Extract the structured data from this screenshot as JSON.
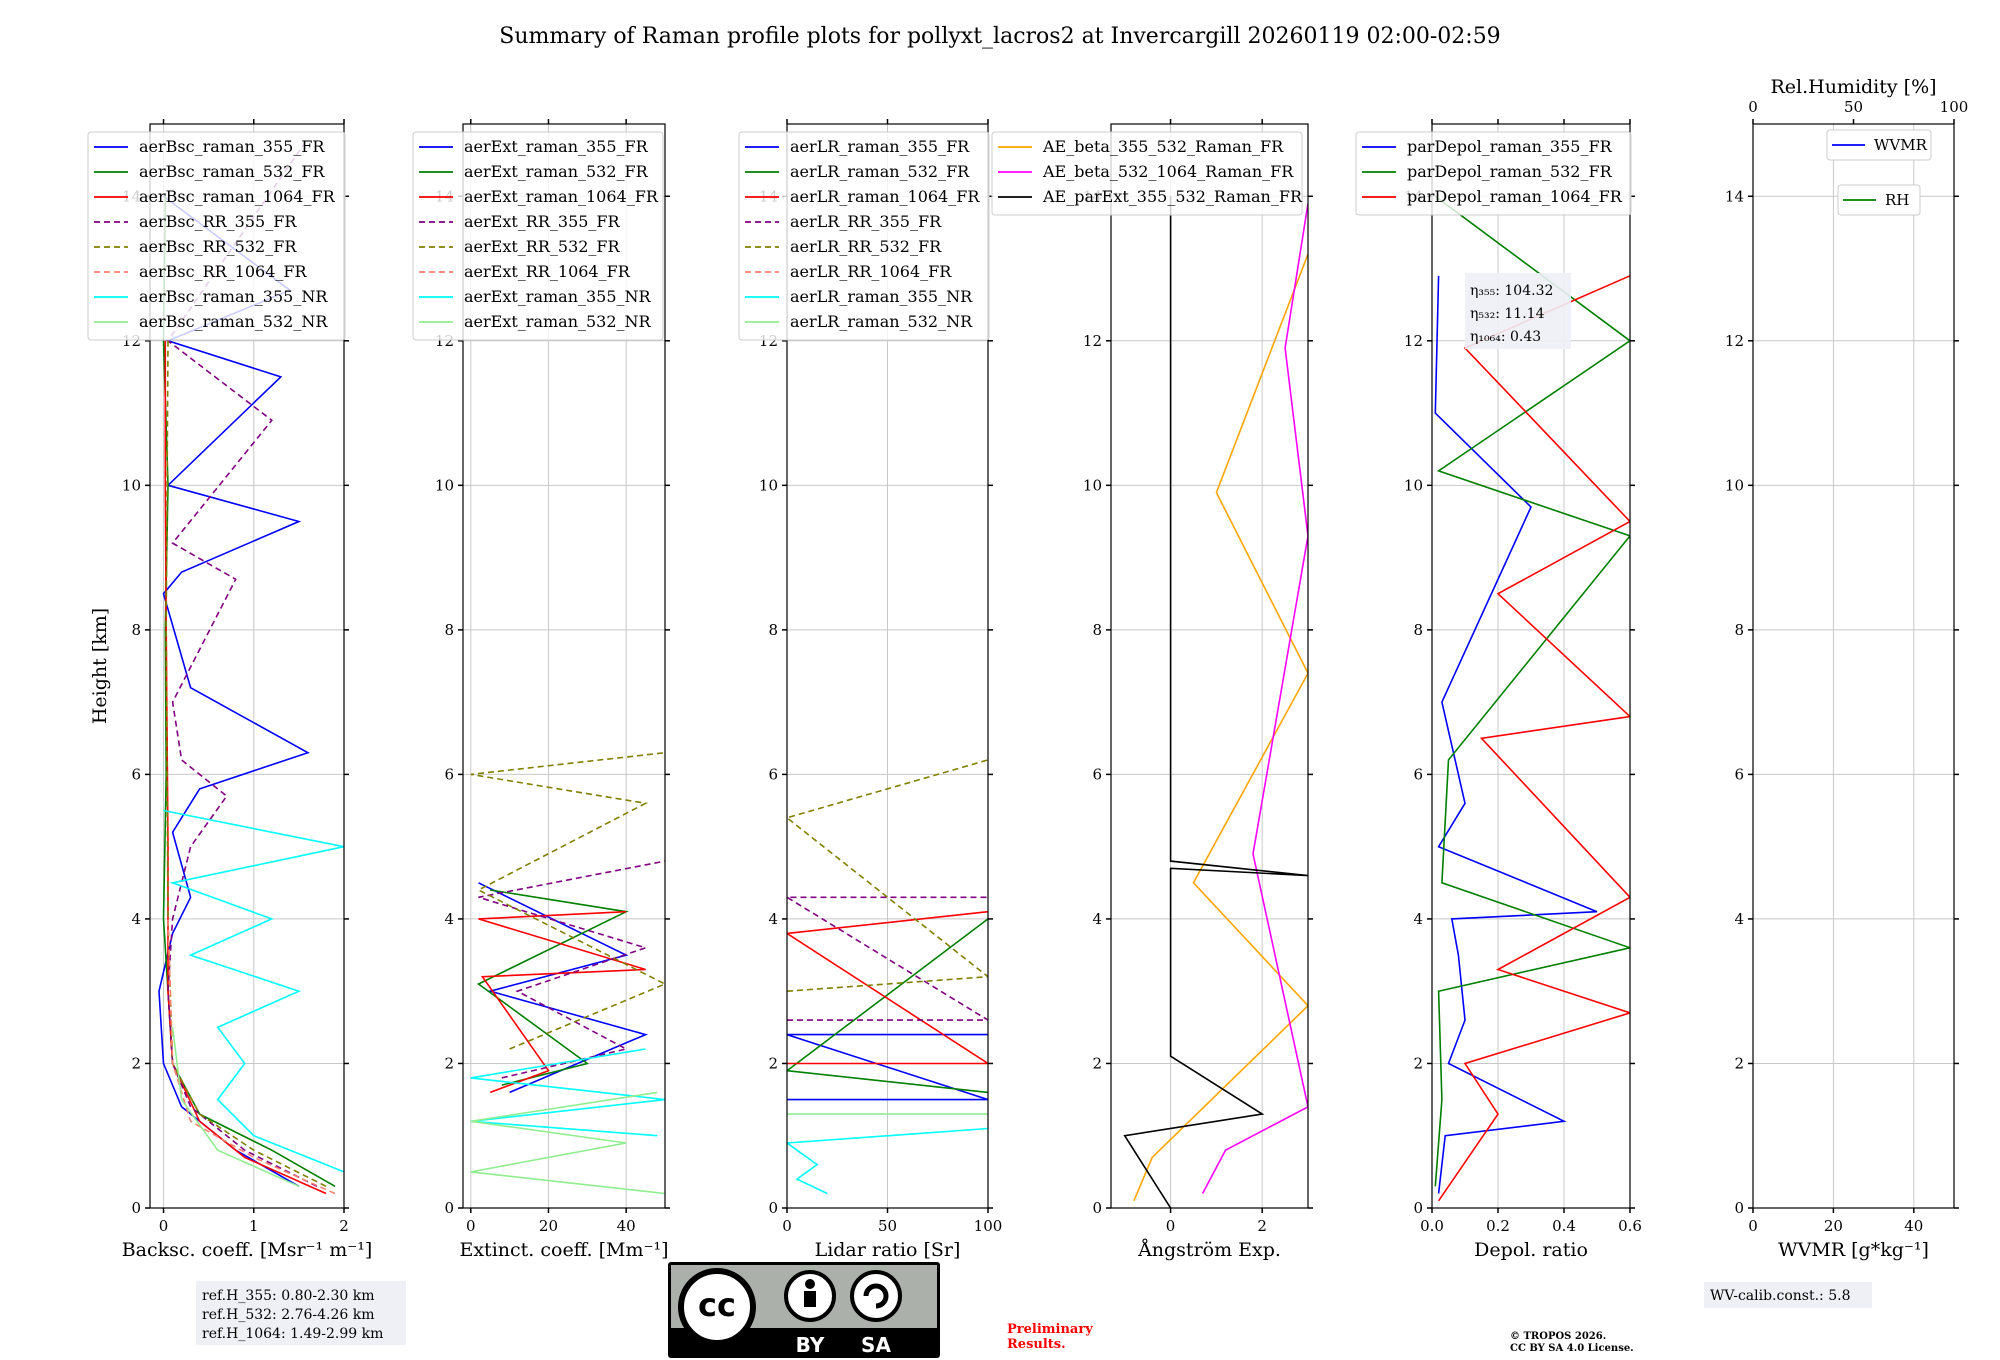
{
  "title": "Summary of Raman profile plots for pollyxt_lacros2 at Invercargill 20260119 02:00-02:59",
  "colors": {
    "blue": "#0000ff",
    "green": "#008000",
    "red": "#ff0000",
    "purple": "#800080",
    "olive": "#808000",
    "salmon": "#fa8072",
    "cyan": "#00ffff",
    "lightgreen": "#90ee90",
    "orange": "#ffa500",
    "magenta": "#ff00ff",
    "black": "#000000"
  },
  "chart_data": [
    {
      "type": "line",
      "panel": "backscatter",
      "xlabel": "Backsc. coeff. [Msr⁻¹ m⁻¹]",
      "ylabel": "Height [km]",
      "xlim": [
        -0.15,
        2.0
      ],
      "ylim": [
        0,
        15
      ],
      "xticks": [
        "0",
        "1",
        "2"
      ],
      "xtick_values": [
        0,
        1,
        2
      ],
      "yticks": [
        "0",
        "2",
        "4",
        "6",
        "8",
        "10",
        "12",
        "14"
      ],
      "legend": [
        "aerBsc_raman_355_FR",
        "aerBsc_raman_532_FR",
        "aerBsc_raman_1064_FR",
        "aerBsc_RR_355_FR",
        "aerBsc_RR_532_FR",
        "aerBsc_RR_1064_FR",
        "aerBsc_raman_355_NR",
        "aerBsc_raman_532_NR"
      ],
      "series": [
        {
          "name": "aerBsc_raman_355_FR",
          "x": [
            1.5,
            0.8,
            0.2,
            0.0,
            -0.05,
            0.1,
            0.3,
            0.1,
            0.4,
            1.6,
            0.3,
            0.0,
            0.2,
            1.5,
            0.05,
            1.3,
            0.05,
            1.4,
            0.0
          ],
          "y": [
            0.3,
            0.8,
            1.4,
            2.0,
            3.0,
            3.8,
            4.3,
            5.2,
            5.8,
            6.3,
            7.2,
            8.5,
            8.8,
            9.5,
            10.0,
            11.5,
            12.0,
            12.7,
            14.0
          ]
        },
        {
          "name": "aerBsc_raman_532_FR",
          "x": [
            1.9,
            1.2,
            0.4,
            0.1,
            0.05,
            0.0,
            0.03,
            0.02,
            0.05,
            0.0,
            0.02
          ],
          "y": [
            0.3,
            0.8,
            1.3,
            2.0,
            3.0,
            4.0,
            6.0,
            8.0,
            10.0,
            12.0,
            14.0
          ]
        },
        {
          "name": "aerBsc_raman_1064_FR",
          "x": [
            1.8,
            0.9,
            0.4,
            0.1,
            0.05,
            0.05,
            0.03,
            0.02,
            0.02
          ],
          "y": [
            0.2,
            0.7,
            1.2,
            2.0,
            3.0,
            5.0,
            8.0,
            10.0,
            12.0
          ]
        },
        {
          "name": "aerBsc_RR_355_FR",
          "x": [
            1.7,
            0.9,
            0.3,
            0.1,
            0.05,
            0.1,
            0.3,
            0.7,
            0.2,
            0.1,
            0.8,
            0.1,
            1.2,
            0.05,
            1.6
          ],
          "y": [
            0.3,
            0.8,
            1.4,
            2.0,
            3.0,
            4.0,
            5.0,
            5.7,
            6.2,
            7.0,
            8.7,
            9.2,
            10.9,
            12.0,
            14.8
          ]
        },
        {
          "name": "aerBsc_RR_532_FR",
          "x": [
            1.8,
            1.0,
            0.4,
            0.1,
            0.05,
            0.03,
            0.05
          ],
          "y": [
            0.3,
            0.8,
            1.3,
            2.0,
            4.0,
            8.0,
            12.0
          ]
        },
        {
          "name": "aerBsc_RR_1064_FR",
          "x": [
            1.9,
            1.0,
            0.3,
            0.1,
            0.05
          ],
          "y": [
            0.2,
            0.7,
            1.2,
            2.0,
            4.0
          ]
        },
        {
          "name": "aerBsc_raman_355_NR",
          "x": [
            2.0,
            1.0,
            0.6,
            0.9,
            0.6,
            1.5,
            0.3,
            1.2,
            0.1,
            2.0,
            0.0
          ],
          "y": [
            0.5,
            1.0,
            1.5,
            2.0,
            2.5,
            3.0,
            3.5,
            4.0,
            4.5,
            5.0,
            5.5
          ]
        },
        {
          "name": "aerBsc_raman_532_NR",
          "x": [
            1.5,
            0.6,
            0.2,
            0.1
          ],
          "y": [
            0.3,
            0.8,
            1.5,
            2.5
          ]
        }
      ]
    },
    {
      "type": "line",
      "panel": "extinction",
      "xlabel": "Extinct. coeff. [Mm⁻¹]",
      "xlim": [
        -2,
        50
      ],
      "ylim": [
        0,
        15
      ],
      "xticks": [
        "0",
        "20",
        "40"
      ],
      "xtick_values": [
        0,
        20,
        40
      ],
      "yticks": [
        "0",
        "2",
        "4",
        "6",
        "8",
        "10",
        "12",
        "14"
      ],
      "legend": [
        "aerExt_raman_355_FR",
        "aerExt_raman_532_FR",
        "aerExt_raman_1064_FR",
        "aerExt_RR_355_FR",
        "aerExt_RR_532_FR",
        "aerExt_RR_1064_FR",
        "aerExt_raman_355_NR",
        "aerExt_raman_532_NR"
      ],
      "series": [
        {
          "name": "aerExt_raman_355_FR",
          "x": [
            10,
            45,
            5,
            40,
            2
          ],
          "y": [
            1.6,
            2.4,
            3.0,
            3.5,
            4.5
          ]
        },
        {
          "name": "aerExt_raman_532_FR",
          "x": [
            8,
            30,
            2,
            40,
            5
          ],
          "y": [
            1.7,
            2.0,
            3.1,
            4.1,
            4.4
          ]
        },
        {
          "name": "aerExt_raman_1064_FR",
          "x": [
            5,
            20,
            3,
            45,
            2,
            40
          ],
          "y": [
            1.6,
            1.9,
            3.2,
            3.3,
            4.0,
            4.1
          ]
        },
        {
          "name": "aerExt_RR_355_FR",
          "x": [
            8,
            40,
            12,
            45,
            2,
            50
          ],
          "y": [
            1.8,
            2.2,
            3.0,
            3.6,
            4.3,
            4.8
          ]
        },
        {
          "name": "aerExt_RR_532_FR",
          "x": [
            10,
            50,
            2,
            45,
            0,
            50
          ],
          "y": [
            2.2,
            3.1,
            4.4,
            5.6,
            6.0,
            6.3
          ]
        },
        {
          "name": "aerExt_RR_1064_FR",
          "x": [],
          "y": []
        },
        {
          "name": "aerExt_raman_355_NR",
          "x": [
            48,
            0,
            50,
            0,
            45
          ],
          "y": [
            1.0,
            1.2,
            1.5,
            1.8,
            2.2
          ]
        },
        {
          "name": "aerExt_raman_532_NR",
          "x": [
            50,
            0,
            40,
            0,
            48
          ],
          "y": [
            0.2,
            0.5,
            0.9,
            1.2,
            1.6
          ]
        }
      ]
    },
    {
      "type": "line",
      "panel": "lidar_ratio",
      "xlabel": "Lidar ratio [Sr]",
      "xlim": [
        0,
        100
      ],
      "ylim": [
        0,
        15
      ],
      "xticks": [
        "0",
        "50",
        "100"
      ],
      "xtick_values": [
        0,
        50,
        100
      ],
      "yticks": [
        "0",
        "2",
        "4",
        "6",
        "8",
        "10",
        "12",
        "14"
      ],
      "legend": [
        "aerLR_raman_355_FR",
        "aerLR_raman_532_FR",
        "aerLR_raman_1064_FR",
        "aerLR_RR_355_FR",
        "aerLR_RR_532_FR",
        "aerLR_RR_1064_FR",
        "aerLR_raman_355_NR",
        "aerLR_raman_532_NR"
      ],
      "series": [
        {
          "name": "aerLR_raman_355_FR",
          "x": [
            0,
            100,
            0,
            100
          ],
          "y": [
            1.5,
            1.5,
            2.4,
            2.4
          ]
        },
        {
          "name": "aerLR_raman_532_FR",
          "x": [
            100,
            0,
            100
          ],
          "y": [
            1.6,
            1.9,
            4.0
          ]
        },
        {
          "name": "aerLR_raman_1064_FR",
          "x": [
            0,
            100,
            0,
            100
          ],
          "y": [
            2.0,
            2.0,
            3.8,
            4.1
          ]
        },
        {
          "name": "aerLR_RR_355_FR",
          "x": [
            0,
            100,
            0,
            100
          ],
          "y": [
            2.6,
            2.6,
            4.3,
            4.3
          ]
        },
        {
          "name": "aerLR_RR_532_FR",
          "x": [
            0,
            100,
            0,
            100
          ],
          "y": [
            3.0,
            3.2,
            5.4,
            6.2
          ]
        },
        {
          "name": "aerLR_RR_1064_FR",
          "x": [],
          "y": []
        },
        {
          "name": "aerLR_raman_355_NR",
          "x": [
            20,
            5,
            15,
            0,
            100
          ],
          "y": [
            0.2,
            0.4,
            0.6,
            0.9,
            1.1
          ]
        },
        {
          "name": "aerLR_raman_532_NR",
          "x": [
            0,
            100
          ],
          "y": [
            1.3,
            1.3
          ]
        }
      ]
    },
    {
      "type": "line",
      "panel": "angstrom",
      "xlabel": "Ångström Exp.",
      "xlim": [
        -1.3,
        3.0
      ],
      "ylim": [
        0,
        15
      ],
      "xticks": [
        "0",
        "2"
      ],
      "xtick_values": [
        0,
        2
      ],
      "yticks": [
        "0",
        "2",
        "4",
        "6",
        "8",
        "10",
        "12",
        "14"
      ],
      "legend": [
        "AE_beta_355_532_Raman_FR",
        "AE_beta_532_1064_Raman_FR",
        "AE_parExt_355_532_Raman_FR"
      ],
      "series": [
        {
          "name": "AE_beta_355_532_Raman_FR",
          "x": [
            -0.8,
            -0.4,
            3.0,
            0.5,
            3.0,
            1.0,
            3.0
          ],
          "y": [
            0.1,
            0.7,
            2.8,
            4.5,
            7.4,
            9.9,
            13.2
          ]
        },
        {
          "name": "AE_beta_532_1064_Raman_FR",
          "x": [
            0.7,
            1.2,
            3.0,
            1.8,
            3.0,
            2.5,
            3.0
          ],
          "y": [
            0.2,
            0.8,
            1.4,
            4.9,
            9.3,
            11.9,
            13.9
          ]
        },
        {
          "name": "AE_parExt_355_532_Raman_FR",
          "x": [
            0,
            -0.5,
            -1.0,
            2.0,
            0,
            0,
            3.0,
            0,
            0
          ],
          "y": [
            0.0,
            0.5,
            1.0,
            1.3,
            2.1,
            4.7,
            4.6,
            4.8,
            14.0
          ]
        }
      ]
    },
    {
      "type": "line",
      "panel": "depol",
      "xlabel": "Depol. ratio",
      "xlim": [
        0,
        0.6
      ],
      "ylim": [
        0,
        15
      ],
      "xticks": [
        "0.0",
        "0.2",
        "0.4",
        "0.6"
      ],
      "xtick_values": [
        0,
        0.2,
        0.4,
        0.6
      ],
      "yticks": [
        "0",
        "2",
        "4",
        "6",
        "8",
        "10",
        "12",
        "14"
      ],
      "legend": [
        "parDepol_raman_355_FR",
        "parDepol_raman_532_FR",
        "parDepol_raman_1064_FR"
      ],
      "annotations": [
        "η₃₅₅: 104.32",
        "η₅₃₂: 11.14",
        "η₁₀₆₄: 0.43"
      ],
      "series": [
        {
          "name": "parDepol_raman_355_FR",
          "x": [
            0.02,
            0.04,
            0.4,
            0.05,
            0.1,
            0.08,
            0.06,
            0.5,
            0.02,
            0.1,
            0.03,
            0.3,
            0.01,
            0.02
          ],
          "y": [
            0.2,
            1.0,
            1.2,
            2.0,
            2.6,
            3.5,
            4.0,
            4.1,
            5.0,
            5.6,
            7.0,
            9.7,
            11.0,
            12.9
          ]
        },
        {
          "name": "parDepol_raman_532_FR",
          "x": [
            0.01,
            0.03,
            0.02,
            0.6,
            0.03,
            0.05,
            0.6,
            0.02,
            0.6,
            0.01
          ],
          "y": [
            0.3,
            1.5,
            3.0,
            3.6,
            4.5,
            6.2,
            9.3,
            10.2,
            12.0,
            14.0
          ]
        },
        {
          "name": "parDepol_raman_1064_FR",
          "x": [
            0.02,
            0.2,
            0.1,
            0.6,
            0.2,
            0.6,
            0.15,
            0.6,
            0.2,
            0.6,
            0.1,
            0.6
          ],
          "y": [
            0.1,
            1.3,
            2.0,
            2.7,
            3.3,
            4.3,
            6.5,
            6.8,
            8.5,
            9.5,
            11.9,
            12.9
          ]
        }
      ]
    },
    {
      "type": "line",
      "panel": "water_vapor",
      "xlabel": "WVMR [g*kg⁻¹]",
      "xlabel_top": "Rel.Humidity [%]",
      "xlim": [
        0,
        50
      ],
      "xlim_top": [
        0,
        100
      ],
      "ylim": [
        0,
        15
      ],
      "xticks": [
        "0",
        "20",
        "40"
      ],
      "xtick_values": [
        0,
        20,
        40
      ],
      "xticks_top": [
        "0",
        "50",
        "100"
      ],
      "yticks": [
        "0",
        "2",
        "4",
        "6",
        "8",
        "10",
        "12",
        "14"
      ],
      "legend": [
        "WVMR"
      ],
      "legend2": [
        "RH"
      ],
      "series": [
        {
          "name": "WVMR",
          "x": [],
          "y": []
        },
        {
          "name": "RH",
          "x": [],
          "y": []
        }
      ]
    }
  ],
  "ref_heights": [
    "ref.H_355: 0.80-2.30 km",
    "ref.H_532: 2.76-4.26 km",
    "ref.H_1064: 1.49-2.99 km"
  ],
  "wv_calib": "WV-calib.const.: 5.8",
  "license_badge": {
    "top": "cc",
    "by": "BY",
    "sa": "SA"
  },
  "preliminary": [
    "Preliminary",
    "Results."
  ],
  "copyright": [
    "© TROPOS 2026.",
    "CC BY SA 4.0 License."
  ]
}
